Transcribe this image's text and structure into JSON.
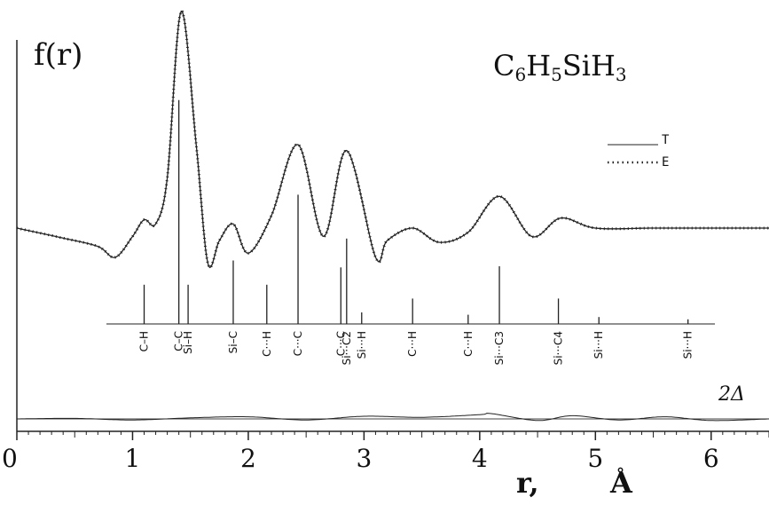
{
  "chart_data": {
    "type": "line",
    "ylabel": "f(r)",
    "xlabel": "r, Å",
    "xlabel_parts": {
      "var": "r,",
      "unit_ring": "°",
      "unit": "A"
    },
    "title": {
      "parts": [
        {
          "text": "C",
          "sub": false
        },
        {
          "text": "6",
          "sub": true
        },
        {
          "text": "H",
          "sub": false
        },
        {
          "text": "5",
          "sub": true
        },
        {
          "text": "SiH",
          "sub": false
        },
        {
          "text": "3",
          "sub": true
        }
      ]
    },
    "xlim": [
      0,
      6.5
    ],
    "x_ticks": [
      "0",
      "1",
      "2",
      "3",
      "4",
      "5",
      "6"
    ],
    "legend": {
      "position": "top-right",
      "entries": [
        {
          "name": "T",
          "style": "solid line"
        },
        {
          "name": "E",
          "style": "dotted line"
        }
      ]
    },
    "difference_label": "2Δ",
    "series": [
      {
        "name": "T",
        "x": [
          0,
          0.4,
          0.7,
          0.85,
          1.0,
          1.1,
          1.2,
          1.3,
          1.42,
          1.55,
          1.65,
          1.75,
          1.87,
          2.0,
          2.2,
          2.43,
          2.65,
          2.85,
          3.1,
          3.2,
          3.42,
          3.65,
          3.9,
          4.17,
          4.45,
          4.7,
          5.0,
          5.5,
          6.0,
          6.5
        ],
        "y": [
          0.0,
          -0.12,
          -0.22,
          -0.35,
          -0.1,
          0.1,
          0.05,
          0.6,
          2.6,
          1.0,
          -0.42,
          -0.15,
          0.05,
          -0.3,
          0.15,
          1.0,
          -0.1,
          0.93,
          -0.35,
          -0.15,
          0.0,
          -0.17,
          -0.05,
          0.38,
          -0.1,
          0.12,
          0.0,
          0.0,
          0.0,
          0.0
        ]
      },
      {
        "name": "E",
        "x": [
          0,
          0.4,
          0.7,
          0.85,
          1.0,
          1.1,
          1.2,
          1.3,
          1.42,
          1.55,
          1.65,
          1.75,
          1.87,
          2.0,
          2.2,
          2.43,
          2.65,
          2.85,
          3.1,
          3.2,
          3.42,
          3.65,
          3.9,
          4.17,
          4.45,
          4.7,
          5.0,
          5.5,
          6.0,
          6.5
        ],
        "y": [
          0.0,
          -0.12,
          -0.22,
          -0.35,
          -0.1,
          0.1,
          0.05,
          0.6,
          2.6,
          1.0,
          -0.42,
          -0.15,
          0.05,
          -0.3,
          0.15,
          1.0,
          -0.1,
          0.93,
          -0.35,
          -0.15,
          0.0,
          -0.17,
          -0.05,
          0.38,
          -0.1,
          0.12,
          0.0,
          0.0,
          0.0,
          0.0
        ]
      }
    ],
    "distances": [
      {
        "label": "C–H",
        "r": 1.1,
        "height": 0.34
      },
      {
        "label": "C–C",
        "r": 1.4,
        "height": 1.94
      },
      {
        "label": "Si–H",
        "r": 1.48,
        "height": 0.34
      },
      {
        "label": "Si–C",
        "r": 1.87,
        "height": 0.55
      },
      {
        "label": "C···H",
        "r": 2.16,
        "height": 0.34
      },
      {
        "label": "C···C",
        "r": 2.43,
        "height": 1.12
      },
      {
        "label": "C···C",
        "r": 2.8,
        "height": 0.49
      },
      {
        "label": "Si···C2",
        "r": 2.85,
        "height": 0.74
      },
      {
        "label": "Si···H",
        "r": 2.98,
        "height": 0.1
      },
      {
        "label": "C···H",
        "r": 3.42,
        "height": 0.22
      },
      {
        "label": "C···H",
        "r": 3.9,
        "height": 0.08
      },
      {
        "label": "Si···C3",
        "r": 4.17,
        "height": 0.5
      },
      {
        "label": "Si···C4",
        "r": 4.68,
        "height": 0.22
      },
      {
        "label": "Si···H",
        "r": 5.03,
        "height": 0.06
      },
      {
        "label": "Si···H",
        "r": 5.8,
        "height": 0.04
      }
    ],
    "difference": {
      "x": [
        0,
        0.5,
        1.0,
        1.5,
        2.0,
        2.5,
        3.0,
        3.5,
        4.0,
        4.1,
        4.5,
        4.8,
        5.2,
        5.6,
        6.0,
        6.5
      ],
      "y": [
        0.0,
        0.01,
        -0.02,
        0.02,
        0.04,
        -0.02,
        0.05,
        0.03,
        0.08,
        0.1,
        -0.03,
        0.06,
        -0.02,
        0.04,
        -0.03,
        0.0
      ]
    }
  }
}
